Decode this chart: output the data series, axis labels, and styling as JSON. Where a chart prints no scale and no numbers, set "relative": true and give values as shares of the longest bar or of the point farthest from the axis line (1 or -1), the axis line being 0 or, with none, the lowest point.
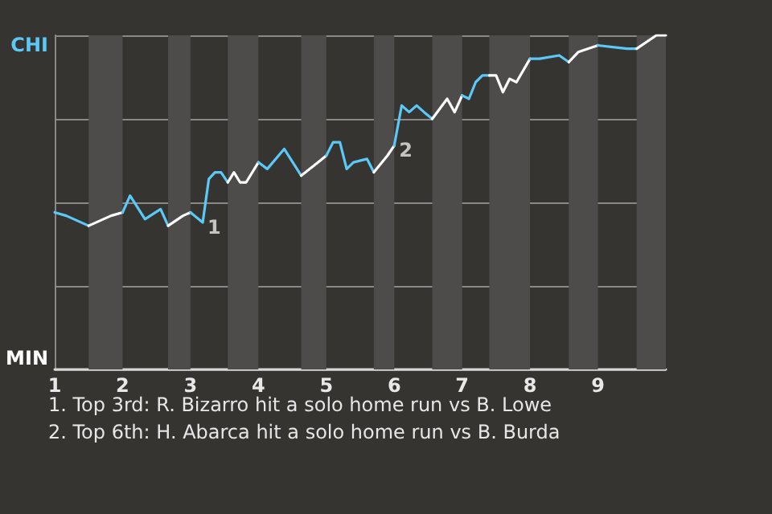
{
  "chart_data": {
    "type": "line",
    "relative": true,
    "series": [
      {
        "color": "#5bc8f5",
        "x": [
          1,
          1.17,
          1.5
        ],
        "values": [
          0.47,
          0.46,
          0.43
        ]
      },
      {
        "color": "#ffffff",
        "x": [
          1.5,
          1.83,
          2
        ],
        "values": [
          0.43,
          0.46,
          0.47
        ]
      },
      {
        "color": "#5bc8f5",
        "x": [
          2,
          2.11,
          2.33,
          2.56,
          2.67
        ],
        "values": [
          0.47,
          0.52,
          0.45,
          0.48,
          0.43
        ]
      },
      {
        "color": "#ffffff",
        "x": [
          2.67,
          2.89,
          3
        ],
        "values": [
          0.43,
          0.46,
          0.47
        ]
      },
      {
        "color": "#5bc8f5",
        "x": [
          3,
          3.18,
          3.27,
          3.36,
          3.45,
          3.55
        ],
        "values": [
          0.47,
          0.44,
          0.57,
          0.59,
          0.59,
          0.56
        ]
      },
      {
        "color": "#ffffff",
        "x": [
          3.55,
          3.64,
          3.73,
          3.82,
          4
        ],
        "values": [
          0.56,
          0.59,
          0.56,
          0.56,
          0.62
        ]
      },
      {
        "color": "#5bc8f5",
        "x": [
          4,
          4.13,
          4.38,
          4.63
        ],
        "values": [
          0.62,
          0.6,
          0.66,
          0.58
        ]
      },
      {
        "color": "#ffffff",
        "x": [
          4.63,
          4.88,
          5
        ],
        "values": [
          0.58,
          0.62,
          0.64
        ]
      },
      {
        "color": "#5bc8f5",
        "x": [
          5,
          5.1,
          5.2,
          5.3,
          5.4,
          5.6,
          5.7
        ],
        "values": [
          0.64,
          0.68,
          0.68,
          0.6,
          0.62,
          0.63,
          0.59
        ]
      },
      {
        "color": "#ffffff",
        "x": [
          5.7,
          5.9,
          6
        ],
        "values": [
          0.59,
          0.64,
          0.67
        ]
      },
      {
        "color": "#5bc8f5",
        "x": [
          6,
          6.11,
          6.22,
          6.33,
          6.44,
          6.56
        ],
        "values": [
          0.67,
          0.79,
          0.77,
          0.79,
          0.77,
          0.75
        ]
      },
      {
        "color": "#ffffff",
        "x": [
          6.56,
          6.78,
          6.89,
          7
        ],
        "values": [
          0.75,
          0.81,
          0.77,
          0.82
        ]
      },
      {
        "color": "#5bc8f5",
        "x": [
          7,
          7.1,
          7.2,
          7.3,
          7.4
        ],
        "values": [
          0.82,
          0.81,
          0.86,
          0.88,
          0.88
        ]
      },
      {
        "color": "#ffffff",
        "x": [
          7.4,
          7.5,
          7.6,
          7.7,
          7.8,
          8
        ],
        "values": [
          0.88,
          0.88,
          0.83,
          0.87,
          0.86,
          0.93
        ]
      },
      {
        "color": "#5bc8f5",
        "x": [
          8,
          8.14,
          8.43,
          8.57
        ],
        "values": [
          0.93,
          0.93,
          0.94,
          0.92
        ]
      },
      {
        "color": "#ffffff",
        "x": [
          8.57,
          8.71,
          9
        ],
        "values": [
          0.92,
          0.95,
          0.97
        ]
      },
      {
        "color": "#5bc8f5",
        "x": [
          9,
          9.43,
          9.57
        ],
        "values": [
          0.97,
          0.96,
          0.96
        ]
      },
      {
        "color": "#ffffff",
        "x": [
          9.57,
          9.86,
          10
        ],
        "values": [
          0.96,
          1,
          1
        ]
      }
    ],
    "xlim": [
      1,
      10
    ],
    "xticks": [
      1,
      2,
      3,
      4,
      5,
      6,
      7,
      8,
      9
    ],
    "grid": "y",
    "marker": "none",
    "line_style": "solid",
    "bands": [
      {
        "axis": "x",
        "from": 1.5,
        "to": 2,
        "color": "#4d4c4a"
      },
      {
        "axis": "x",
        "from": 2.67,
        "to": 3,
        "color": "#4d4c4a"
      },
      {
        "axis": "x",
        "from": 3.55,
        "to": 4,
        "color": "#4d4c4a"
      },
      {
        "axis": "x",
        "from": 4.63,
        "to": 5,
        "color": "#4d4c4a"
      },
      {
        "axis": "x",
        "from": 5.7,
        "to": 6,
        "color": "#4d4c4a"
      },
      {
        "axis": "x",
        "from": 6.56,
        "to": 7,
        "color": "#4d4c4a"
      },
      {
        "axis": "x",
        "from": 7.4,
        "to": 8,
        "color": "#4d4c4a"
      },
      {
        "axis": "x",
        "from": 8.57,
        "to": 9,
        "color": "#4d4c4a"
      },
      {
        "axis": "x",
        "from": 9.57,
        "to": 10,
        "color": "#4d4c4a"
      }
    ],
    "annotations": [
      "CHI",
      "MIN",
      {
        "text": "1",
        "x": 3.18,
        "y": 0.44
      },
      {
        "text": "2",
        "x": 6,
        "y": 0.67
      },
      "1. Top 3rd: R. Bizarro hit a solo home run vs B. Lowe",
      "2. Top 6th: H. Abarca hit a solo home run vs B. Burda"
    ]
  }
}
